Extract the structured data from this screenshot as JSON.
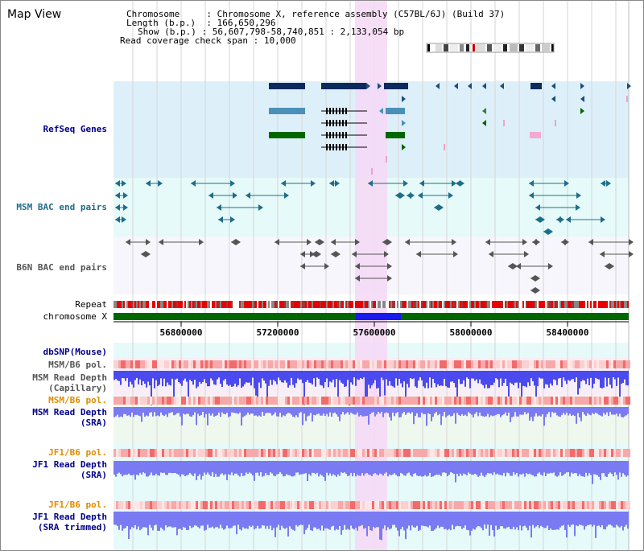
{
  "header": {
    "title": "Map View",
    "chromosome_key": "Chromosome",
    "chromosome_value": "Chromosome X, reference assembly (C57BL/6J) (Build 37)",
    "length_key": "Length (b.p.)",
    "length_value": "166,650,296",
    "show_key": "Show (b.p.)",
    "show_value": "56,607,798-58,740,851 : 2,133,054 bp",
    "coverage_key": "Read coverage check span",
    "coverage_value": "10,000"
  },
  "tracks": {
    "refseq": "RefSeq Genes",
    "msm_bac": "MSM BAC end pairs",
    "b6n_bac": "B6N BAC end pairs",
    "repeat": "Repeat",
    "chromosome": "chromosome X",
    "dbsnp": "dbSNP(Mouse)",
    "msm_b6_pol_1": "MSM/B6 pol.",
    "msm_read_depth_cap_1": "MSM Read Depth",
    "msm_read_depth_cap_2": "(Capillary)",
    "msm_b6_pol_2": "MSM/B6 pol.",
    "msm_read_depth_sra_1": "MSM Read Depth",
    "msm_read_depth_sra_2": "(SRA)",
    "jf1_b6_pol_1": "JF1/B6 pol.",
    "jf1_read_depth_sra_1": "JF1 Read Depth",
    "jf1_read_depth_sra_2": "(SRA)",
    "jf1_b6_pol_2": "JF1/B6 pol.",
    "jf1_read_depth_trim_1": "JF1 Read Depth",
    "jf1_read_depth_trim_2": "(SRA trimmed)"
  },
  "axis": {
    "ticks": [
      "56800000",
      "57200000",
      "57600000",
      "58000000",
      "58400000"
    ]
  },
  "colors": {
    "refseq_bg": "#ddf0fa",
    "msm_bg": "#e6faf9",
    "b6n_bg": "#f6f6fc",
    "highlight": "#f6d8f6",
    "chromosome": "#006600",
    "chromosome_highlight": "#1a1aee",
    "read_depth": "#4a4aee",
    "read_depth_light": "#7a7af2",
    "pol": "#ef7d7d",
    "label_blue": "#00008b",
    "label_teal": "#1f6d8a",
    "label_orange": "#e08c00",
    "label_gray": "#555555"
  }
}
